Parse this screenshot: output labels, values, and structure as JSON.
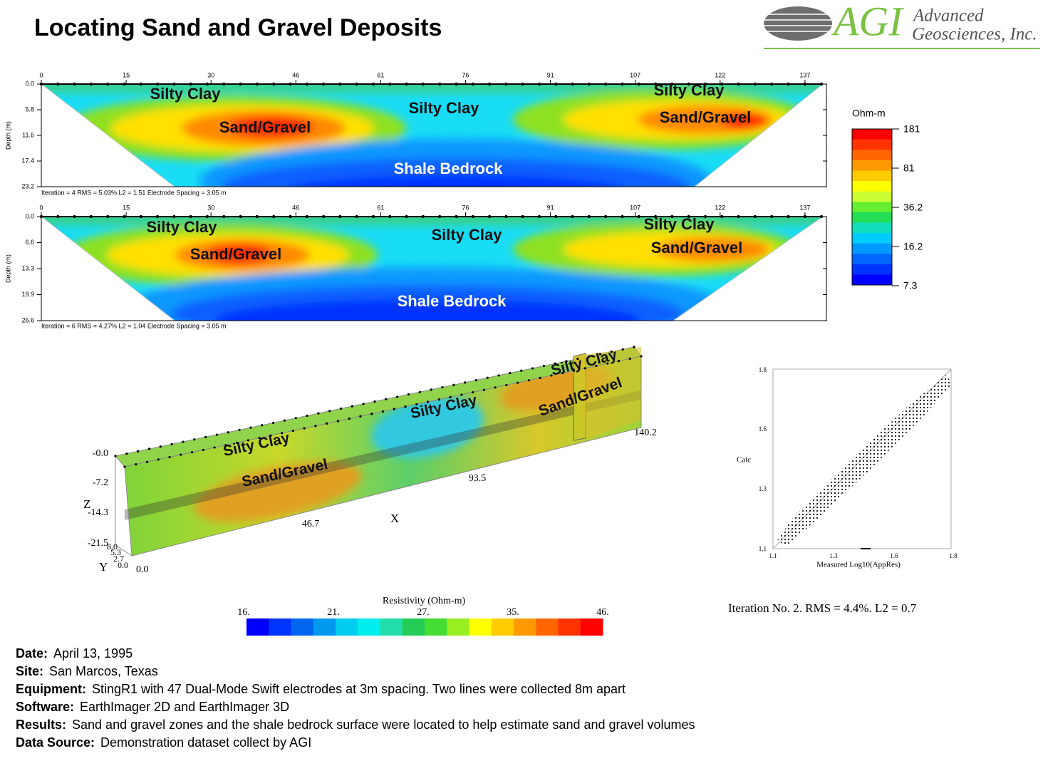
{
  "header": {
    "title": "Locating Sand and Gravel Deposits",
    "logo": {
      "mark": "AGI",
      "line1": "Advanced",
      "line2": "Geosciences, Inc."
    }
  },
  "sections": [
    {
      "x_ticks": [
        "0",
        "15",
        "30",
        "46",
        "61",
        "76",
        "91",
        "107",
        "122",
        "137"
      ],
      "depth_ticks": [
        "0.0",
        "5.8",
        "11.6",
        "17.4",
        "23.2"
      ],
      "depth_label": "Depth (m)",
      "footer": "Iteration = 4    RMS = 5.03%    L2 = 1.51    Electrode Spacing = 3.05 m",
      "labels": [
        "Silty Clay",
        "Sand/Gravel",
        "Silty Clay",
        "Shale Bedrock",
        "Silty Clay",
        "Sand/Gravel"
      ]
    },
    {
      "x_ticks": [
        "0",
        "15",
        "30",
        "46",
        "61",
        "76",
        "91",
        "107",
        "122",
        "137"
      ],
      "depth_ticks": [
        "0.0",
        "6.6",
        "13.3",
        "19.9",
        "26.6"
      ],
      "depth_label": "Depth (m)",
      "footer": "Iteration = 6    RMS = 4.27%    L2 = 1.04    Electrode Spacing = 3.05 m",
      "labels": [
        "Silty Clay",
        "Sand/Gravel",
        "Silty Clay",
        "Shale Bedrock",
        "Silty Clay",
        "Sand/Gravel"
      ]
    }
  ],
  "colorbar_2d": {
    "title": "Ohm-m",
    "ticks": [
      "181",
      "81",
      "36.2",
      "16.2",
      "7.3"
    ]
  },
  "model_3d": {
    "labels": [
      "Silty Clay",
      "Sand/Gravel",
      "Silty Clay",
      "Silty Clay",
      "Sand/Gravel"
    ],
    "z_ticks": [
      "-0.0",
      "-7.2",
      "-14.3",
      "-21.5"
    ],
    "z_label": "Z",
    "x_ticks": [
      "46.7",
      "93.5",
      "140.2"
    ],
    "x_label": "X",
    "y_ticks": [
      "8.0",
      "5.3",
      "2.7",
      "0.0"
    ],
    "y_label": "Y",
    "origin_x": "0.0"
  },
  "colorbar_3d": {
    "title": "Resistivity (Ohm-m)",
    "ticks": [
      "16.",
      "21.",
      "27.",
      "35.",
      "46."
    ]
  },
  "crossplot": {
    "y_ticks": [
      "1.8",
      "1.6",
      "1.3",
      "1.1"
    ],
    "x_ticks": [
      "1.1",
      "1.3",
      "1.6",
      "1.8"
    ],
    "y_label": "Calc",
    "x_label": "Measured Log10(AppRes)",
    "caption": "Iteration No. 2.  RMS = 4.4%.  L2 = 0.7"
  },
  "notes": [
    {
      "label": "Date:",
      "text": "April 13, 1995"
    },
    {
      "label": "Site:",
      "text": "San Marcos, Texas"
    },
    {
      "label": "Equipment:",
      "text": "StingR1 with 47 Dual-Mode Swift electrodes at 3m spacing.  Two lines were collected 8m apart"
    },
    {
      "label": "Software:",
      "text": "EarthImager 2D and EarthImager 3D"
    },
    {
      "label": "Results:",
      "text": "Sand and gravel zones and the shale bedrock surface were located to help estimate sand and gravel volumes"
    },
    {
      "label": "Data Source:",
      "text": "Demonstration dataset collect by AGI"
    }
  ]
}
